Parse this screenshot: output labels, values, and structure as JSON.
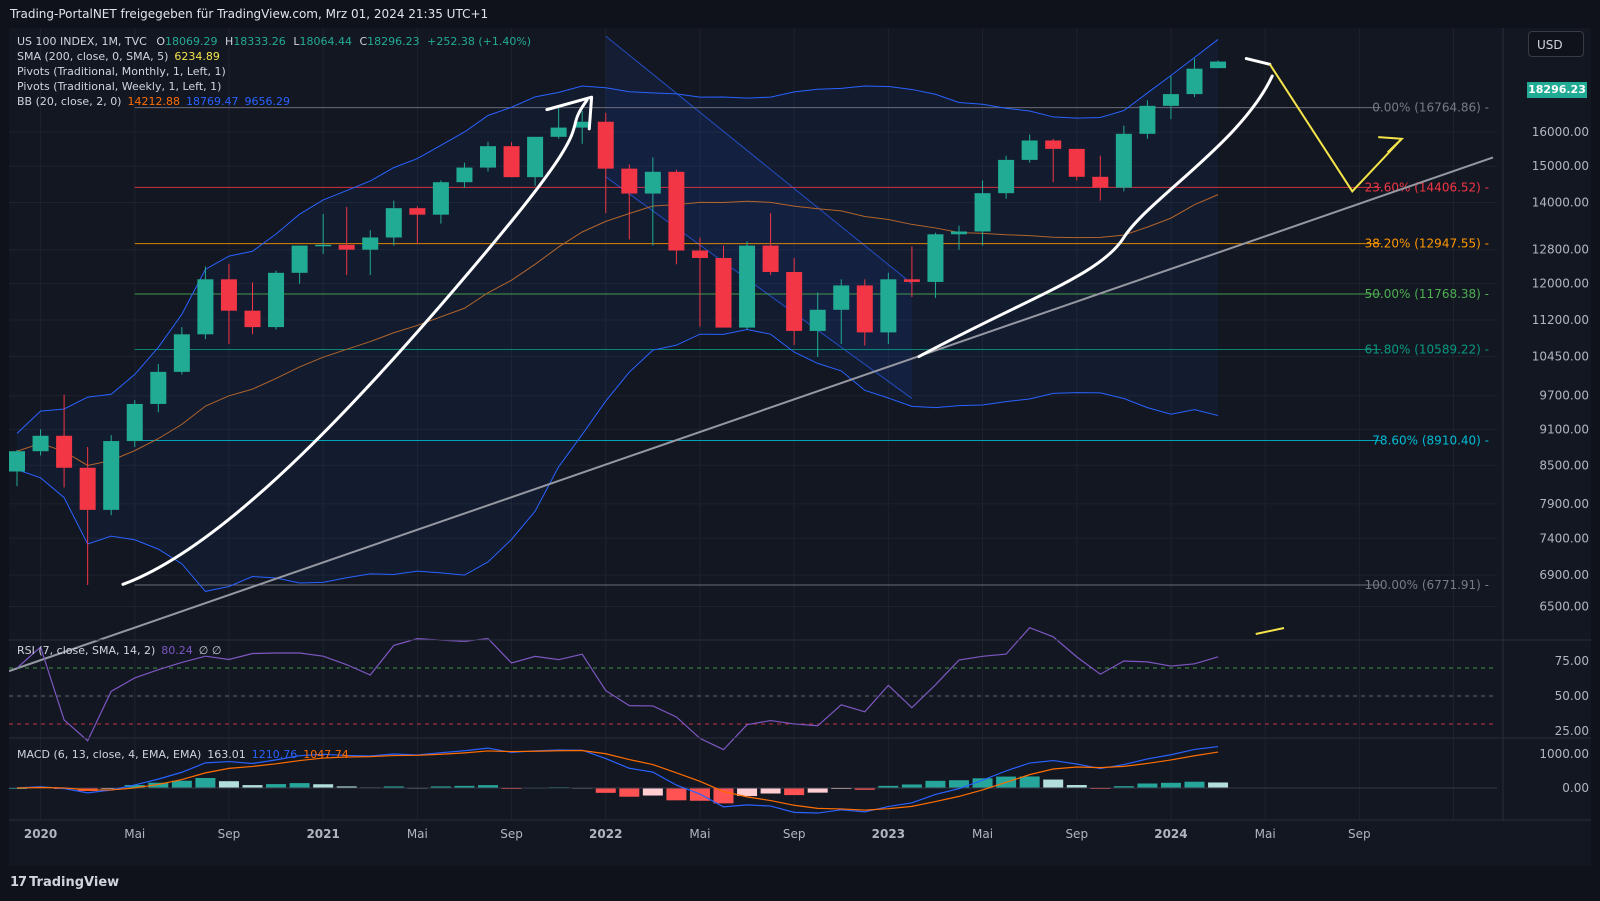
{
  "header": {
    "attribution": "Trading-PortalNET freigegeben für TradingView.com, Mrz 01, 2024 21:35 UTC+1"
  },
  "currency_button": "USD",
  "legend": {
    "symbol": "US 100 INDEX, 1M, TVC",
    "ohlc": {
      "o_label": "O",
      "o": "18069.29",
      "h_label": "H",
      "h": "18333.26",
      "l_label": "L",
      "l": "18064.44",
      "c_label": "C",
      "c": "18296.23",
      "change": "+252.38 (+1.40%)"
    },
    "sma_label": "SMA (200, close, 0, SMA, 5)",
    "sma_value": "6234.89",
    "pivots_monthly": "Pivots (Traditional, Monthly, 1, Left, 1)",
    "pivots_weekly": "Pivots (Traditional, Weekly, 1, Left, 1)",
    "bb_label": "BB (20, close, 2, 0)",
    "bb_values": [
      "14212.88",
      "18769.47",
      "9656.29"
    ],
    "rsi_label": "RSI (7, close, SMA, 14, 2)",
    "rsi_value": "80.24",
    "rsi_extra": "∅ ∅",
    "macd_label": "MACD (6, 13, close, 4, EMA, EMA)",
    "macd_values": [
      "163.01",
      "1210.76",
      "1047.74"
    ]
  },
  "last_price_label": "18296.23",
  "footer": {
    "brand": "TradingView",
    "brand_icon": "tradingview-logo-icon"
  },
  "colors": {
    "up": "#22ab94",
    "down": "#f23645",
    "bb": "#2962ff",
    "sma": "#b2652b",
    "rsi": "#7e57c2",
    "macd": "#2962ff",
    "signal": "#ff6d00",
    "bg": "#0f121a",
    "grid": "#1e222d"
  },
  "chart_data": {
    "type": "candlestick",
    "x_ticks": [
      "2020",
      "Mai",
      "Sep",
      "2021",
      "Mai",
      "Sep",
      "2022",
      "Mai",
      "Sep",
      "2023",
      "Mai",
      "Sep",
      "2024",
      "Mai",
      "Sep"
    ],
    "y_ticks": [
      "16000.00",
      "15000.00",
      "14000.00",
      "12800.00",
      "12000.00",
      "11200.00",
      "10450.00",
      "9700.00",
      "9100.00",
      "8500.00",
      "7900.00",
      "7400.00",
      "6900.00",
      "6500.00"
    ],
    "y_scale": "log",
    "y_range": [
      6100,
      19500
    ],
    "months": [
      "2019-12",
      "2020-01",
      "2020-02",
      "2020-03",
      "2020-04",
      "2020-05",
      "2020-06",
      "2020-07",
      "2020-08",
      "2020-09",
      "2020-10",
      "2020-11",
      "2020-12",
      "2021-01",
      "2021-02",
      "2021-03",
      "2021-04",
      "2021-05",
      "2021-06",
      "2021-07",
      "2021-08",
      "2021-09",
      "2021-10",
      "2021-11",
      "2021-12",
      "2022-01",
      "2022-02",
      "2022-03",
      "2022-04",
      "2022-05",
      "2022-06",
      "2022-07",
      "2022-08",
      "2022-09",
      "2022-10",
      "2022-11",
      "2022-12",
      "2023-01",
      "2023-02",
      "2023-03",
      "2023-04",
      "2023-05",
      "2023-06",
      "2023-07",
      "2023-08",
      "2023-09",
      "2023-10",
      "2023-11",
      "2023-12",
      "2024-01",
      "2024-02",
      "2024-03"
    ],
    "ohlc": [
      [
        8400,
        8750,
        8170,
        8730
      ],
      [
        8730,
        9100,
        8660,
        8990
      ],
      [
        8990,
        9720,
        8150,
        8460
      ],
      [
        8460,
        8800,
        6771,
        7810
      ],
      [
        7810,
        9000,
        7730,
        8900
      ],
      [
        8900,
        9620,
        8800,
        9550
      ],
      [
        9550,
        10300,
        9400,
        10150
      ],
      [
        10150,
        11050,
        10100,
        10900
      ],
      [
        10900,
        12400,
        10800,
        12100
      ],
      [
        12100,
        12460,
        10700,
        11400
      ],
      [
        11400,
        12030,
        10900,
        11050
      ],
      [
        11050,
        12300,
        11000,
        12250
      ],
      [
        12250,
        12900,
        12000,
        12900
      ],
      [
        12900,
        13700,
        12700,
        12920
      ],
      [
        12920,
        13880,
        12200,
        12800
      ],
      [
        12800,
        13280,
        12200,
        13100
      ],
      [
        13100,
        14050,
        12900,
        13850
      ],
      [
        13850,
        13900,
        12950,
        13680
      ],
      [
        13680,
        14600,
        13450,
        14550
      ],
      [
        14550,
        15100,
        14400,
        14960
      ],
      [
        14960,
        15710,
        14850,
        15580
      ],
      [
        15580,
        15700,
        14700,
        14690
      ],
      [
        14690,
        15850,
        14450,
        15860
      ],
      [
        15860,
        16760,
        15800,
        16140
      ],
      [
        16140,
        16660,
        15650,
        16320
      ],
      [
        16320,
        16600,
        13720,
        14930
      ],
      [
        14930,
        15050,
        13050,
        14240
      ],
      [
        14240,
        15250,
        12900,
        14840
      ],
      [
        14840,
        14900,
        12450,
        12780
      ],
      [
        12780,
        13100,
        11060,
        12600
      ],
      [
        12600,
        12900,
        11040,
        11040
      ],
      [
        11040,
        13000,
        11000,
        12900
      ],
      [
        12900,
        13720,
        12200,
        12270
      ],
      [
        12270,
        12600,
        10680,
        10970
      ],
      [
        10970,
        11800,
        10440,
        11420
      ],
      [
        11420,
        12100,
        10700,
        11960
      ],
      [
        11960,
        12100,
        10670,
        10940
      ],
      [
        10940,
        12250,
        10700,
        12100
      ],
      [
        12100,
        12880,
        11700,
        12040
      ],
      [
        12040,
        13220,
        11680,
        13180
      ],
      [
        13180,
        13400,
        12800,
        13250
      ],
      [
        13250,
        14600,
        12900,
        14250
      ],
      [
        14250,
        15300,
        14100,
        15180
      ],
      [
        15180,
        15930,
        15100,
        15750
      ],
      [
        15750,
        15800,
        14550,
        15500
      ],
      [
        15500,
        15500,
        14600,
        14700
      ],
      [
        14700,
        15300,
        14050,
        14400
      ],
      [
        14400,
        16200,
        14300,
        15950
      ],
      [
        15950,
        17000,
        15800,
        16820
      ],
      [
        16820,
        17800,
        16400,
        17200
      ],
      [
        17200,
        18400,
        17100,
        18050
      ],
      [
        18069,
        18333,
        18064,
        18296
      ]
    ],
    "fibonacci": [
      {
        "label": "0.00% (16764.86)",
        "value": 16764.86
      },
      {
        "label": "23.60% (14406.52)",
        "value": 14406.52
      },
      {
        "label": "38.20% (12947.55)",
        "value": 12947.55
      },
      {
        "label": "50.00% (11768.38)",
        "value": 11768.38
      },
      {
        "label": "61.80% (10589.22)",
        "value": 10589.22
      },
      {
        "label": "78.60% (8910.40)",
        "value": 8910.4
      },
      {
        "label": "100.00% (6771.91)",
        "value": 6771.91
      }
    ],
    "rsi": {
      "ticks": [
        "75.00",
        "50.00",
        "25.00"
      ],
      "levels": [
        70,
        50,
        30
      ]
    },
    "macd": {
      "ticks": [
        "1000.00",
        "0.00"
      ]
    }
  }
}
